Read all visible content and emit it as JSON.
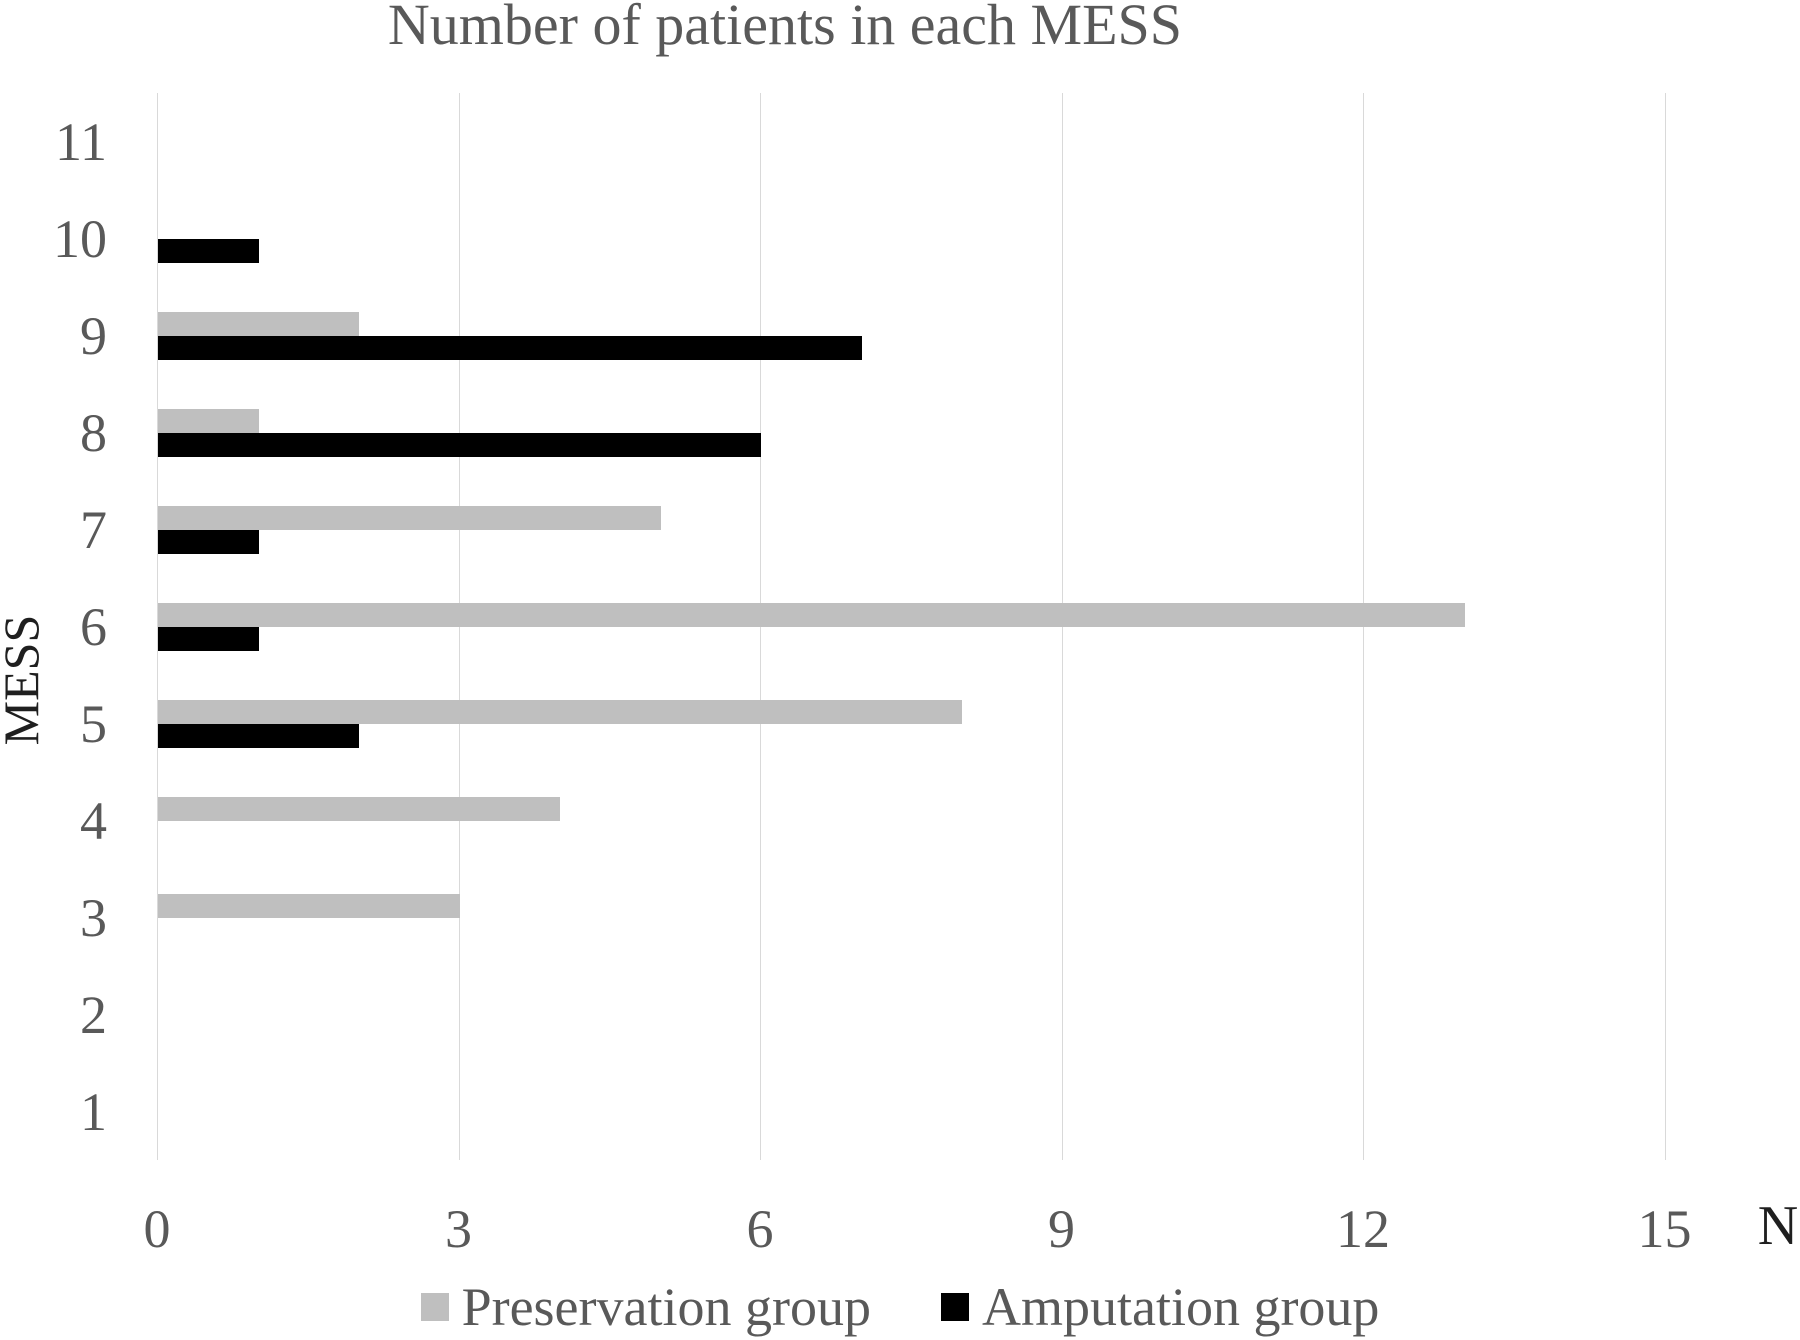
{
  "chart_data": {
    "type": "bar",
    "orientation": "horizontal",
    "title": "Number of patients in each MESS",
    "xlabel": "N",
    "ylabel": "MESS",
    "categories": [
      "11",
      "10",
      "9",
      "8",
      "7",
      "6",
      "5",
      "4",
      "3",
      "2",
      "1"
    ],
    "series": [
      {
        "name": "Preservation group",
        "color": "#bfbfbf",
        "values": [
          0,
          0,
          2,
          1,
          5,
          13,
          8,
          4,
          3,
          0,
          0
        ]
      },
      {
        "name": "Amputation group",
        "color": "#000000",
        "values": [
          0,
          1,
          7,
          6,
          1,
          1,
          2,
          0,
          0,
          0,
          0
        ]
      }
    ],
    "xticks": [
      0,
      3,
      6,
      9,
      12,
      15
    ],
    "xlim": [
      0,
      16.3
    ],
    "grid": "vertical",
    "legend_position": "bottom",
    "colors": {
      "background": "#ffffff",
      "gridline": "#d9d9d9",
      "title_text": "#595959",
      "tick_text": "#595959",
      "axis_title_text": "#1f1f1f",
      "legend_text": "#595959"
    }
  }
}
